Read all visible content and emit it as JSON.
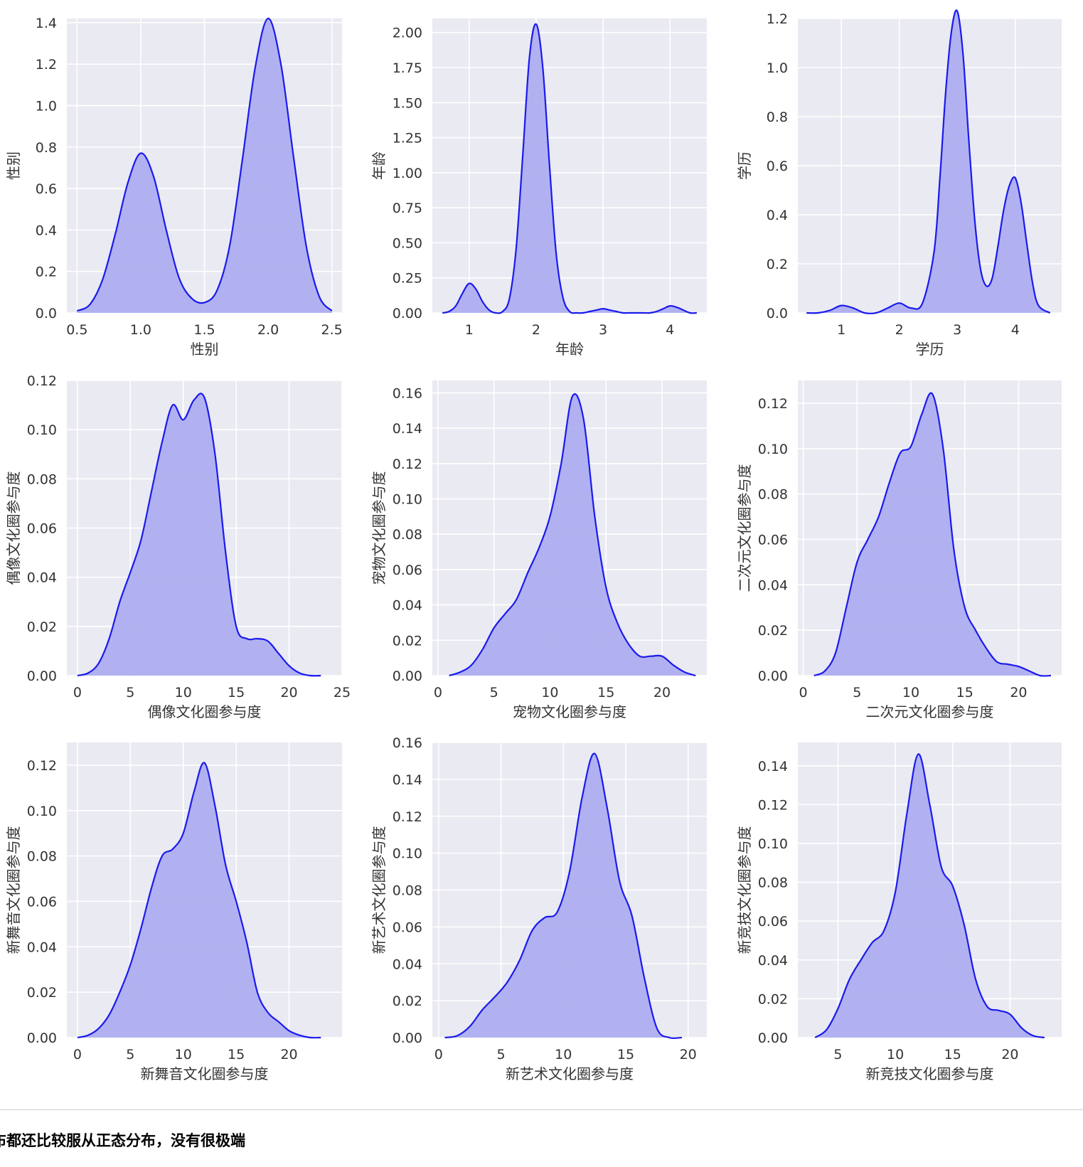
{
  "caption": "布都还比较服从正态分布，没有很极端",
  "colors": {
    "line": "#1a1aee",
    "fill": "#aeaef0",
    "bg": "#eaeaf2",
    "grid": "#ffffff"
  },
  "chart_data": [
    {
      "type": "area",
      "xlabel": "性别",
      "ylabel": "性别",
      "xlim": [
        0.42,
        2.58
      ],
      "ylim": [
        0,
        1.42
      ],
      "xticks": [
        0.5,
        1.0,
        1.5,
        2.0,
        2.5
      ],
      "xtick_labels": [
        "0.5",
        "1.0",
        "1.5",
        "2.0",
        "2.5"
      ],
      "yticks": [
        0,
        0.2,
        0.4,
        0.6,
        0.8,
        1.0,
        1.2,
        1.4
      ],
      "ytick_labels": [
        "0.0",
        "0.2",
        "0.4",
        "0.6",
        "0.8",
        "1.0",
        "1.2",
        "1.4"
      ],
      "x": [
        0.5,
        0.6,
        0.7,
        0.8,
        0.9,
        1.0,
        1.1,
        1.2,
        1.3,
        1.4,
        1.5,
        1.6,
        1.7,
        1.8,
        1.9,
        2.0,
        2.1,
        2.2,
        2.3,
        2.4,
        2.5
      ],
      "y": [
        0.01,
        0.04,
        0.16,
        0.38,
        0.63,
        0.77,
        0.66,
        0.4,
        0.17,
        0.07,
        0.05,
        0.11,
        0.33,
        0.75,
        1.19,
        1.42,
        1.2,
        0.75,
        0.32,
        0.08,
        0.01
      ]
    },
    {
      "type": "area",
      "xlabel": "年龄",
      "ylabel": "年龄",
      "xlim": [
        0.45,
        4.55
      ],
      "ylim": [
        0,
        2.1
      ],
      "xticks": [
        1,
        2,
        3,
        4
      ],
      "xtick_labels": [
        "1",
        "2",
        "3",
        "4"
      ],
      "yticks": [
        0,
        0.25,
        0.5,
        0.75,
        1.0,
        1.25,
        1.5,
        1.75,
        2.0
      ],
      "ytick_labels": [
        "0.00",
        "0.25",
        "0.50",
        "0.75",
        "1.00",
        "1.25",
        "1.50",
        "1.75",
        "2.00"
      ],
      "x": [
        0.6,
        0.7,
        0.8,
        0.9,
        1.0,
        1.1,
        1.2,
        1.3,
        1.4,
        1.5,
        1.6,
        1.7,
        1.8,
        1.9,
        2.0,
        2.1,
        2.2,
        2.3,
        2.4,
        2.5,
        2.6,
        2.7,
        2.8,
        2.9,
        3.0,
        3.1,
        3.2,
        3.3,
        3.4,
        3.5,
        3.6,
        3.7,
        3.8,
        3.9,
        4.0,
        4.1,
        4.2,
        4.3,
        4.4
      ],
      "y": [
        0.0,
        0.01,
        0.05,
        0.14,
        0.21,
        0.17,
        0.08,
        0.02,
        0.0,
        0.01,
        0.1,
        0.45,
        1.12,
        1.82,
        2.06,
        1.75,
        1.05,
        0.42,
        0.11,
        0.01,
        0.0,
        0.0,
        0.01,
        0.02,
        0.03,
        0.02,
        0.01,
        0.0,
        0.0,
        0.0,
        0.0,
        0.0,
        0.01,
        0.03,
        0.05,
        0.04,
        0.02,
        0.0,
        0.0
      ]
    },
    {
      "type": "area",
      "xlabel": "学历",
      "ylabel": "学历",
      "xlim": [
        0.25,
        4.8
      ],
      "ylim": [
        0,
        1.2
      ],
      "xticks": [
        1,
        2,
        3,
        4
      ],
      "xtick_labels": [
        "1",
        "2",
        "3",
        "4"
      ],
      "yticks": [
        0,
        0.2,
        0.4,
        0.6,
        0.8,
        1.0,
        1.2
      ],
      "ytick_labels": [
        "0.0",
        "0.2",
        "0.4",
        "0.6",
        "0.8",
        "1.0",
        "1.2"
      ],
      "x": [
        0.4,
        0.6,
        0.8,
        1.0,
        1.2,
        1.4,
        1.6,
        1.8,
        2.0,
        2.2,
        2.4,
        2.6,
        2.7,
        2.8,
        2.9,
        3.0,
        3.1,
        3.2,
        3.3,
        3.4,
        3.5,
        3.6,
        3.7,
        3.8,
        3.9,
        4.0,
        4.1,
        4.2,
        4.3,
        4.4,
        4.6
      ],
      "y": [
        0.0,
        0.0,
        0.01,
        0.03,
        0.02,
        0.0,
        0.0,
        0.02,
        0.04,
        0.02,
        0.04,
        0.25,
        0.55,
        0.9,
        1.15,
        1.23,
        1.05,
        0.7,
        0.38,
        0.18,
        0.11,
        0.14,
        0.27,
        0.42,
        0.52,
        0.55,
        0.45,
        0.28,
        0.12,
        0.03,
        0.0
      ]
    },
    {
      "type": "area",
      "xlabel": "偶像文化圈参与度",
      "ylabel": "偶像文化圈参与度",
      "xlim": [
        -1,
        25
      ],
      "ylim": [
        0,
        0.12
      ],
      "xticks": [
        0,
        5,
        10,
        15,
        20,
        25
      ],
      "xtick_labels": [
        "0",
        "5",
        "10",
        "15",
        "20",
        "25"
      ],
      "yticks": [
        0,
        0.02,
        0.04,
        0.06,
        0.08,
        0.1,
        0.12
      ],
      "ytick_labels": [
        "0.00",
        "0.02",
        "0.04",
        "0.06",
        "0.08",
        "0.10",
        "0.12"
      ],
      "x": [
        0,
        1,
        2,
        3,
        4,
        5,
        6,
        7,
        8,
        9,
        10,
        11,
        12,
        13,
        14,
        15,
        16,
        17,
        18,
        19,
        20,
        21,
        22,
        23
      ],
      "y": [
        0.0,
        0.001,
        0.005,
        0.015,
        0.03,
        0.042,
        0.055,
        0.075,
        0.095,
        0.11,
        0.104,
        0.112,
        0.113,
        0.09,
        0.05,
        0.02,
        0.015,
        0.015,
        0.014,
        0.009,
        0.004,
        0.001,
        0.0,
        0.0
      ]
    },
    {
      "type": "area",
      "xlabel": "宠物文化圈参与度",
      "ylabel": "宠物文化圈参与度",
      "xlim": [
        -0.5,
        24
      ],
      "ylim": [
        0,
        0.167
      ],
      "xticks": [
        0,
        5,
        10,
        15,
        20
      ],
      "xtick_labels": [
        "0",
        "5",
        "10",
        "15",
        "20"
      ],
      "yticks": [
        0,
        0.02,
        0.04,
        0.06,
        0.08,
        0.1,
        0.12,
        0.14,
        0.16
      ],
      "ytick_labels": [
        "0.00",
        "0.02",
        "0.04",
        "0.06",
        "0.08",
        "0.10",
        "0.12",
        "0.14",
        "0.16"
      ],
      "x": [
        1,
        2,
        3,
        4,
        5,
        6,
        7,
        8,
        9,
        10,
        11,
        12,
        13,
        14,
        15,
        16,
        17,
        18,
        19,
        20,
        21,
        22,
        23
      ],
      "y": [
        0.0,
        0.002,
        0.006,
        0.015,
        0.027,
        0.035,
        0.043,
        0.058,
        0.072,
        0.09,
        0.12,
        0.158,
        0.145,
        0.09,
        0.05,
        0.03,
        0.018,
        0.011,
        0.011,
        0.011,
        0.006,
        0.002,
        0.0
      ]
    },
    {
      "type": "area",
      "xlabel": "二次元文化圈参与度",
      "ylabel": "二次元文化圈参与度",
      "xlim": [
        -0.5,
        24
      ],
      "ylim": [
        0,
        0.13
      ],
      "xticks": [
        0,
        5,
        10,
        15,
        20
      ],
      "xtick_labels": [
        "0",
        "5",
        "10",
        "15",
        "20"
      ],
      "yticks": [
        0,
        0.02,
        0.04,
        0.06,
        0.08,
        0.1,
        0.12
      ],
      "ytick_labels": [
        "0.00",
        "0.02",
        "0.04",
        "0.06",
        "0.08",
        "0.10",
        "0.12"
      ],
      "x": [
        1,
        2,
        3,
        4,
        5,
        6,
        7,
        8,
        9,
        10,
        11,
        12,
        13,
        14,
        15,
        16,
        17,
        18,
        19,
        20,
        21,
        22,
        23
      ],
      "y": [
        0.0,
        0.002,
        0.01,
        0.03,
        0.05,
        0.06,
        0.07,
        0.085,
        0.098,
        0.101,
        0.115,
        0.124,
        0.1,
        0.055,
        0.03,
        0.02,
        0.012,
        0.006,
        0.005,
        0.004,
        0.002,
        0.0,
        0.0
      ]
    },
    {
      "type": "area",
      "xlabel": "新舞音文化圈参与度",
      "ylabel": "新舞音文化圈参与度",
      "xlim": [
        -1,
        25
      ],
      "ylim": [
        0,
        0.13
      ],
      "xticks": [
        0,
        5,
        10,
        15,
        20
      ],
      "xtick_labels": [
        "0",
        "5",
        "10",
        "15",
        "20"
      ],
      "yticks": [
        0,
        0.02,
        0.04,
        0.06,
        0.08,
        0.1,
        0.12
      ],
      "ytick_labels": [
        "0.00",
        "0.02",
        "0.04",
        "0.06",
        "0.08",
        "0.10",
        "0.12"
      ],
      "x": [
        0,
        1,
        2,
        3,
        4,
        5,
        6,
        7,
        8,
        9,
        10,
        11,
        12,
        13,
        14,
        15,
        16,
        17,
        18,
        19,
        20,
        21,
        22,
        23
      ],
      "y": [
        0.0,
        0.001,
        0.004,
        0.01,
        0.02,
        0.032,
        0.048,
        0.066,
        0.08,
        0.083,
        0.09,
        0.108,
        0.121,
        0.102,
        0.076,
        0.06,
        0.042,
        0.02,
        0.011,
        0.007,
        0.003,
        0.001,
        0.0,
        0.0
      ]
    },
    {
      "type": "area",
      "xlabel": "新艺术文化圈参与度",
      "ylabel": "新艺术文化圈参与度",
      "xlim": [
        -0.5,
        21.5
      ],
      "ylim": [
        0,
        0.16
      ],
      "xticks": [
        0,
        5,
        10,
        15,
        20
      ],
      "xtick_labels": [
        "0",
        "5",
        "10",
        "15",
        "20"
      ],
      "yticks": [
        0,
        0.02,
        0.04,
        0.06,
        0.08,
        0.1,
        0.12,
        0.14,
        0.16
      ],
      "ytick_labels": [
        "0.00",
        "0.02",
        "0.04",
        "0.06",
        "0.08",
        "0.10",
        "0.12",
        "0.14",
        "0.16"
      ],
      "x": [
        0.5,
        1.5,
        2.5,
        3.5,
        4.5,
        5.5,
        6.5,
        7.5,
        8.5,
        9.5,
        10.5,
        11.5,
        12.5,
        13.5,
        14.5,
        15.5,
        16.5,
        17.5,
        18.5,
        19.5
      ],
      "y": [
        0.0,
        0.001,
        0.006,
        0.015,
        0.022,
        0.03,
        0.042,
        0.058,
        0.065,
        0.068,
        0.09,
        0.13,
        0.154,
        0.125,
        0.085,
        0.066,
        0.032,
        0.005,
        0.0,
        0.0
      ]
    },
    {
      "type": "area",
      "xlabel": "新竞技文化圈参与度",
      "ylabel": "新竞技文化圈参与度",
      "xlim": [
        1.5,
        24.5
      ],
      "ylim": [
        0,
        0.152
      ],
      "xticks": [
        5,
        10,
        15,
        20
      ],
      "xtick_labels": [
        "5",
        "10",
        "15",
        "20"
      ],
      "yticks": [
        0,
        0.02,
        0.04,
        0.06,
        0.08,
        0.1,
        0.12,
        0.14
      ],
      "ytick_labels": [
        "0.00",
        "0.02",
        "0.04",
        "0.06",
        "0.08",
        "0.10",
        "0.12",
        "0.14"
      ],
      "x": [
        3,
        4,
        5,
        6,
        7,
        8,
        9,
        10,
        11,
        12,
        13,
        14,
        15,
        16,
        17,
        18,
        19,
        20,
        21,
        22,
        23
      ],
      "y": [
        0.0,
        0.004,
        0.015,
        0.03,
        0.04,
        0.049,
        0.055,
        0.075,
        0.115,
        0.146,
        0.12,
        0.088,
        0.078,
        0.058,
        0.03,
        0.016,
        0.014,
        0.012,
        0.005,
        0.001,
        0.0
      ]
    }
  ]
}
